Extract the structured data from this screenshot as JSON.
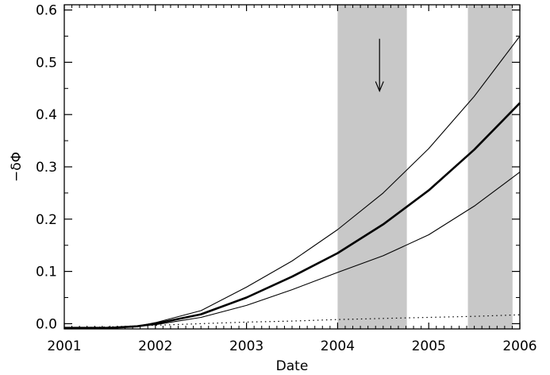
{
  "chart_data": {
    "type": "line",
    "title": "",
    "xlabel": "Date",
    "ylabel": "−δΦ",
    "xlim": [
      2001.0,
      2006.0
    ],
    "ylim": [
      -0.01,
      0.61
    ],
    "x_ticks": [
      2001,
      2002,
      2003,
      2004,
      2005,
      2006
    ],
    "x_tick_labels": [
      "2001",
      "2002",
      "2003",
      "2004",
      "2005",
      "2006"
    ],
    "y_ticks": [
      0.0,
      0.1,
      0.2,
      0.3,
      0.4,
      0.5,
      0.6
    ],
    "y_tick_labels": [
      "0.0",
      "0.1",
      "0.2",
      "0.3",
      "0.4",
      "0.5",
      "0.6"
    ],
    "grid": false,
    "legend": "none",
    "shaded_intervals": [
      {
        "x0": 2004.0,
        "x1": 2004.76,
        "color": "#c8c8c8"
      },
      {
        "x0": 2005.43,
        "x1": 2005.92,
        "color": "#c8c8c8"
      }
    ],
    "annotations": [
      {
        "type": "arrow",
        "x": 2004.46,
        "y_start": 0.545,
        "y_end": 0.445,
        "direction": "down"
      }
    ],
    "series": [
      {
        "style": "thick",
        "x": [
          2001.0,
          2001.5,
          2001.8,
          2002.0,
          2002.5,
          2003.0,
          2003.5,
          2004.0,
          2004.5,
          2005.0,
          2005.5,
          2006.0
        ],
        "y": [
          -0.008,
          -0.008,
          -0.005,
          0.0,
          0.018,
          0.05,
          0.09,
          0.135,
          0.19,
          0.255,
          0.333,
          0.422
        ]
      },
      {
        "style": "upper-bound",
        "x": [
          2001.0,
          2001.5,
          2001.8,
          2002.0,
          2002.5,
          2003.0,
          2003.5,
          2004.0,
          2004.5,
          2005.0,
          2005.5,
          2006.0
        ],
        "y": [
          -0.008,
          -0.008,
          -0.005,
          0.002,
          0.025,
          0.07,
          0.12,
          0.18,
          0.25,
          0.335,
          0.435,
          0.55
        ]
      },
      {
        "style": "lower-bound",
        "x": [
          2001.0,
          2001.5,
          2001.8,
          2002.0,
          2002.5,
          2003.0,
          2003.5,
          2004.0,
          2004.5,
          2005.0,
          2005.5,
          2006.0
        ],
        "y": [
          -0.008,
          -0.008,
          -0.005,
          -0.002,
          0.012,
          0.035,
          0.065,
          0.098,
          0.13,
          0.17,
          0.225,
          0.29
        ]
      },
      {
        "style": "dotted",
        "x": [
          2001.0,
          2001.5,
          2002.0,
          2002.5,
          2003.0,
          2003.5,
          2004.0,
          2004.5,
          2005.0,
          2005.5,
          2006.0
        ],
        "y": [
          -0.008,
          -0.006,
          -0.003,
          0.0,
          0.003,
          0.005,
          0.008,
          0.01,
          0.012,
          0.014,
          0.017
        ]
      }
    ],
    "colors": {
      "shade": "#c8c8c8",
      "line": "#000000",
      "background": "#ffffff"
    }
  }
}
